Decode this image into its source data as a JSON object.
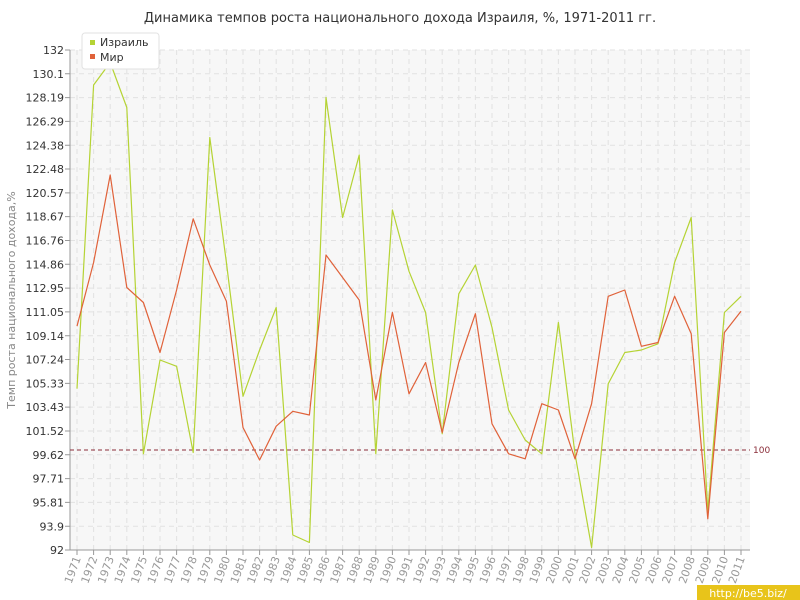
{
  "chart_data": {
    "type": "line",
    "title": "Динамика темпов роста национального дохода Израиля, %, 1971-2011 гг.",
    "ylabel": "Темп роста национального дохода,%",
    "xlabel": "",
    "ylim": [
      92,
      132
    ],
    "y_ticks": [
      "92",
      "93.9",
      "95.81",
      "97.71",
      "99.62",
      "101.52",
      "103.43",
      "105.33",
      "107.24",
      "109.14",
      "111.05",
      "112.95",
      "114.86",
      "116.76",
      "118.67",
      "120.57",
      "122.48",
      "124.38",
      "126.29",
      "128.19",
      "130.1",
      "132"
    ],
    "x": [
      "1971",
      "1972",
      "1973",
      "1974",
      "1975",
      "1976",
      "1977",
      "1978",
      "1979",
      "1980",
      "1981",
      "1982",
      "1983",
      "1984",
      "1985",
      "1986",
      "1987",
      "1988",
      "1989",
      "1990",
      "1991",
      "1992",
      "1993",
      "1994",
      "1995",
      "1996",
      "1997",
      "1998",
      "1999",
      "2000",
      "2001",
      "2002",
      "2003",
      "2004",
      "2005",
      "2006",
      "2007",
      "2008",
      "2009",
      "2010",
      "2011"
    ],
    "series": [
      {
        "name": "Израиль",
        "color": "#b5d334",
        "values": [
          104.9,
          129.2,
          131.0,
          127.4,
          99.7,
          107.2,
          106.7,
          99.8,
          125.0,
          115.0,
          104.3,
          108.0,
          111.4,
          93.2,
          92.6,
          128.2,
          118.6,
          123.6,
          99.7,
          119.2,
          114.3,
          111.0,
          101.3,
          112.5,
          114.8,
          109.8,
          103.2,
          100.8,
          99.7,
          110.2,
          99.7,
          92.2,
          105.3,
          107.8,
          108.0,
          108.5,
          115.0,
          118.6,
          95.1,
          111.0,
          112.3
        ]
      },
      {
        "name": "Мир",
        "color": "#e0623a",
        "values": [
          109.9,
          115.0,
          122.0,
          113.0,
          111.8,
          107.8,
          112.8,
          118.5,
          114.8,
          111.9,
          101.8,
          99.2,
          101.9,
          103.1,
          102.8,
          115.6,
          113.8,
          112.0,
          104.0,
          111.0,
          104.5,
          107.0,
          101.4,
          107.0,
          110.9,
          102.1,
          99.7,
          99.3,
          103.7,
          103.2,
          99.3,
          103.7,
          112.3,
          112.8,
          108.3,
          108.6,
          112.3,
          109.3,
          94.5,
          109.4,
          111.1
        ]
      }
    ],
    "reference_line": {
      "value": 100,
      "label": "100",
      "color": "#8b2e3a"
    },
    "grid": true,
    "legend": "top-left"
  },
  "watermark": {
    "text": "http://be5.biz/"
  }
}
